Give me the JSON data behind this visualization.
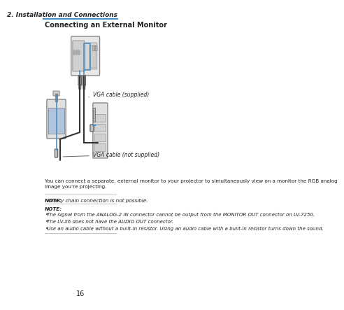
{
  "bg_color": "#ffffff",
  "page_number": "16",
  "header_text": "2. Installation and Connections",
  "section_title": "Connecting an External Monitor",
  "body_text": "You can connect a separate, external monitor to your projector to simultaneously view on a monitor the RGB analog\nimage you’re projecting.",
  "note1_label": "NOTE:",
  "note1_text": "Daisy chain connection is not possible.",
  "note2_label": "NOTE:",
  "note2_bullets": [
    "The signal from the ANALOG-2 IN connector cannot be output from the MONITOR OUT connector on LV-7250.",
    "The LV-X6 does not have the AUDIO OUT connector.",
    "Use an audio cable without a built-in resistor. Using an audio cable with a built-in resistor turns down the sound."
  ],
  "label_vga_supplied": "VGA cable (supplied)",
  "label_vga_not_supplied": "VGA cable (not supplied)",
  "header_line_color": "#4a90c4",
  "note_line_color": "#aaaaaa",
  "accent_color": "#4a90c4",
  "text_color": "#222222"
}
